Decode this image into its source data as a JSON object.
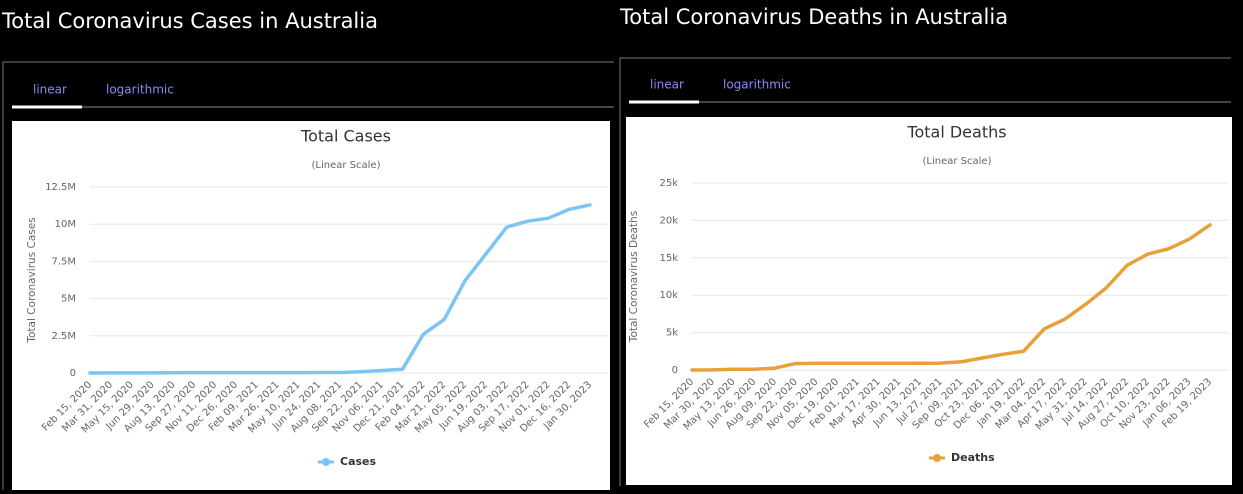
{
  "panels": [
    {
      "heading": "Total Coronavirus Cases in Australia",
      "tabs": [
        "linear",
        "logarithmic"
      ]
    },
    {
      "heading": "Total Coronavirus Deaths in Australia",
      "tabs": [
        "linear",
        "logarithmic"
      ]
    }
  ],
  "chart_data": [
    {
      "type": "line",
      "title": "Total Cases",
      "subtitle": "(Linear Scale)",
      "y_label": "Total Coronavirus Cases",
      "categories": [
        "Feb 15, 2020",
        "Mar 31, 2020",
        "May 15, 2020",
        "Jun 29, 2020",
        "Aug 13, 2020",
        "Sep 27, 2020",
        "Nov 11, 2020",
        "Dec 26, 2020",
        "Feb 09, 2021",
        "Mar 26, 2021",
        "May 10, 2021",
        "Jun 24, 2021",
        "Aug 08, 2021",
        "Sep 22, 2021",
        "Nov 06, 2021",
        "Dec 21, 2021",
        "Feb 04, 2022",
        "Mar 21, 2022",
        "May 05, 2022",
        "Jun 19, 2022",
        "Aug 03, 2022",
        "Sep 17, 2022",
        "Nov 01, 2022",
        "Dec 16, 2022",
        "Jan 30, 2023"
      ],
      "series": [
        {
          "name": "Cases",
          "color": "#7cc5f2",
          "values": [
            15,
            4500,
            7000,
            8000,
            22000,
            27000,
            28000,
            28500,
            29000,
            29300,
            30000,
            30500,
            35000,
            85000,
            170000,
            250000,
            2600000,
            3600000,
            6200000,
            8000000,
            9800000,
            10200000,
            10400000,
            11000000,
            11300000
          ]
        }
      ],
      "ylim": [
        0,
        12500000
      ],
      "yticks": [
        0,
        {
          "value": 2500000,
          "label": "2.5M"
        },
        {
          "value": 5000000,
          "label": "5M"
        },
        {
          "value": 7500000,
          "label": "7.5M"
        },
        {
          "value": 10000000,
          "label": "10M"
        },
        {
          "value": 12500000,
          "label": "12.5M"
        }
      ],
      "grid": true,
      "legend": "bottom"
    },
    {
      "type": "line",
      "title": "Total Deaths",
      "subtitle": "(Linear Scale)",
      "y_label": "Total Coronavirus Deaths",
      "categories": [
        "Feb 15, 2020",
        "Mar 30, 2020",
        "May 13, 2020",
        "Jun 26, 2020",
        "Aug 09, 2020",
        "Sep 22, 2020",
        "Nov 05, 2020",
        "Dec 19, 2020",
        "Feb 01, 2021",
        "Mar 17, 2021",
        "Apr 30, 2021",
        "Jun 13, 2021",
        "Jul 27, 2021",
        "Sep 09, 2021",
        "Oct 23, 2021",
        "Dec 06, 2021",
        "Jan 19, 2022",
        "Mar 04, 2022",
        "Apr 17, 2022",
        "May 31, 2022",
        "Jul 14, 2022",
        "Aug 27, 2022",
        "Oct 10, 2022",
        "Nov 23, 2022",
        "Jan 06, 2023",
        "Feb 19, 2023"
      ],
      "series": [
        {
          "name": "Deaths",
          "color": "#e8a03a",
          "values": [
            0,
            20,
            100,
            100,
            250,
            850,
            900,
            910,
            910,
            910,
            910,
            910,
            920,
            1100,
            1600,
            2100,
            2500,
            5500,
            6800,
            8800,
            11000,
            14000,
            15500,
            16200,
            17500,
            19400
          ]
        }
      ],
      "ylim": [
        0,
        25000
      ],
      "yticks": [
        0,
        {
          "value": 5000,
          "label": "5k"
        },
        {
          "value": 10000,
          "label": "10k"
        },
        {
          "value": 15000,
          "label": "15k"
        },
        {
          "value": 20000,
          "label": "20k"
        },
        {
          "value": 25000,
          "label": "25k"
        }
      ],
      "grid": true,
      "legend": "bottom"
    }
  ]
}
